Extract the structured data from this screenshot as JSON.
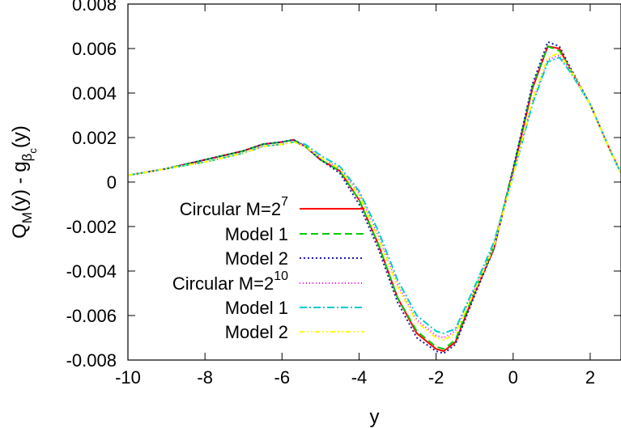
{
  "chart_data": {
    "type": "line",
    "title": "",
    "xlabel": "y",
    "ylabel_parts": [
      "Q",
      "M",
      "(y) - g",
      "β",
      "c",
      "(y)"
    ],
    "xlim": [
      -10,
      2.8
    ],
    "ylim": [
      -0.008,
      0.008
    ],
    "xticks": [
      -10,
      -8,
      -6,
      -4,
      -2,
      0,
      2
    ],
    "xtick_labels": [
      "-10",
      "-8",
      "-6",
      "-4",
      "-2",
      "0",
      "2"
    ],
    "yticks": [
      -0.008,
      -0.006,
      -0.004,
      -0.002,
      0,
      0.002,
      0.004,
      0.006,
      0.008
    ],
    "ytick_labels": [
      "-0.008",
      "-0.006",
      "-0.004",
      "-0.002",
      "0",
      "0.002",
      "0.004",
      "0.006",
      "0.008"
    ],
    "grid": false,
    "legend_position": "center-left",
    "x": [
      -10,
      -9,
      -8,
      -7,
      -6.5,
      -6,
      -5.7,
      -5.4,
      -5,
      -4.5,
      -4,
      -3.5,
      -3,
      -2.5,
      -2,
      -1.8,
      -1.5,
      -1,
      -0.5,
      0,
      0.5,
      0.9,
      1.2,
      1.5,
      2,
      2.5,
      2.8
    ],
    "series": [
      {
        "name": "Circular M=2",
        "name_sup": "7",
        "color": "#ff0000",
        "dash": "",
        "values": [
          0.0003,
          0.0006,
          0.001,
          0.0014,
          0.0017,
          0.0018,
          0.0019,
          0.0016,
          0.001,
          0.0005,
          -0.0008,
          -0.0028,
          -0.0052,
          -0.0068,
          -0.0075,
          -0.0076,
          -0.0072,
          -0.005,
          -0.003,
          0.0005,
          0.0042,
          0.0061,
          0.006,
          0.005,
          0.0035,
          0.0015,
          0.0004
        ]
      },
      {
        "name": "Model 1",
        "color": "#00cc00",
        "dash": "9 5",
        "values": [
          0.0003,
          0.0006,
          0.001,
          0.0014,
          0.0017,
          0.0018,
          0.0019,
          0.0016,
          0.001,
          0.0005,
          -0.0008,
          -0.0028,
          -0.0052,
          -0.0067,
          -0.0074,
          -0.0075,
          -0.0071,
          -0.0049,
          -0.0029,
          0.0006,
          0.0043,
          0.0061,
          0.0059,
          0.005,
          0.0035,
          0.0015,
          0.0004
        ]
      },
      {
        "name": "Model 2",
        "color": "#1a1aaa",
        "dash": "2 3",
        "values": [
          0.0003,
          0.0006,
          0.001,
          0.0014,
          0.0017,
          0.0018,
          0.0019,
          0.0016,
          0.001,
          0.0004,
          -0.001,
          -0.003,
          -0.0054,
          -0.007,
          -0.0076,
          -0.0077,
          -0.0073,
          -0.0051,
          -0.003,
          0.0006,
          0.0044,
          0.0063,
          0.0061,
          0.0051,
          0.0035,
          0.0015,
          0.0004
        ]
      },
      {
        "name": "Circular M=2",
        "name_sup": "10",
        "color": "#ff00ff",
        "dash": "1 3",
        "values": [
          0.0003,
          0.0006,
          0.0009,
          0.0013,
          0.0016,
          0.0017,
          0.0018,
          0.0016,
          0.0011,
          0.0006,
          -0.0005,
          -0.0024,
          -0.0046,
          -0.0062,
          -0.0069,
          -0.007,
          -0.0067,
          -0.0048,
          -0.0028,
          0.0004,
          0.0036,
          0.0055,
          0.0057,
          0.005,
          0.0035,
          0.0015,
          0.0004
        ]
      },
      {
        "name": "Model 1",
        "color": "#00cccc",
        "dash": "9 3 2 3",
        "values": [
          0.0003,
          0.0006,
          0.0009,
          0.0013,
          0.0016,
          0.0017,
          0.0018,
          0.0017,
          0.0012,
          0.0007,
          -0.0004,
          -0.0022,
          -0.0044,
          -0.006,
          -0.0067,
          -0.0068,
          -0.0066,
          -0.0047,
          -0.0027,
          0.0003,
          0.0035,
          0.0054,
          0.0056,
          0.0049,
          0.0035,
          0.0015,
          0.0004
        ]
      },
      {
        "name": "Model 2",
        "color": "#ffff00",
        "dash": "6 3 2 3 2 3",
        "values": [
          0.0003,
          0.0006,
          0.0009,
          0.0013,
          0.0016,
          0.0017,
          0.0018,
          0.0016,
          0.0011,
          0.0006,
          -0.0006,
          -0.0025,
          -0.0047,
          -0.0063,
          -0.007,
          -0.0071,
          -0.0068,
          -0.0049,
          -0.0029,
          0.0003,
          0.0037,
          0.0056,
          0.0058,
          0.005,
          0.0035,
          0.0015,
          0.0004
        ]
      }
    ]
  }
}
